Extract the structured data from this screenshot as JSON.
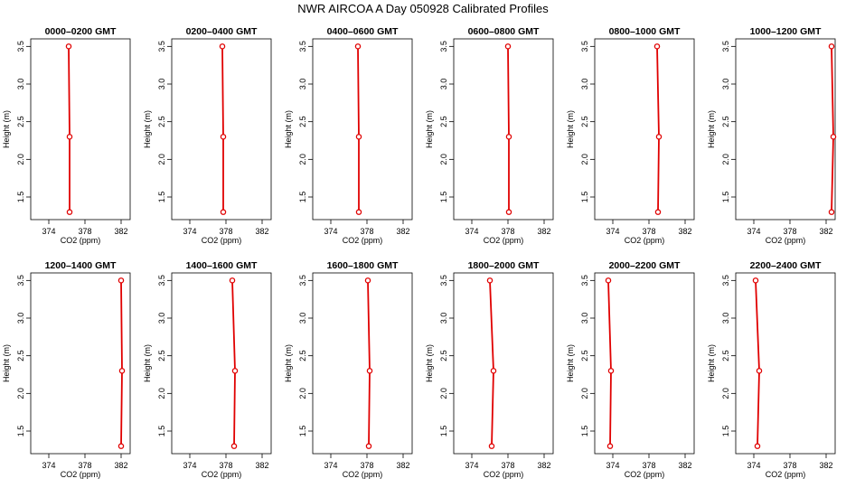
{
  "title": "NWR AIRCOA A  Day 050928  Calibrated Profiles",
  "chart_data": {
    "type": "line",
    "xlabel": "CO2 (ppm)",
    "ylabel": "Height (m)",
    "xlim": [
      372,
      383
    ],
    "ylim": [
      1.2,
      3.6
    ],
    "xticks": [
      "374",
      "378",
      "382"
    ],
    "yticks": [
      "1.5",
      "2.0",
      "2.5",
      "3.0",
      "3.5"
    ],
    "heights": [
      1.3,
      2.3,
      3.5
    ],
    "colors": {
      "line": "#e00000",
      "marker": "#e00000",
      "axis": "#000000"
    },
    "panels": [
      {
        "title": "0000–0200 GMT",
        "co2": [
          376.3,
          376.3,
          376.2
        ]
      },
      {
        "title": "0200–0400 GMT",
        "co2": [
          377.7,
          377.7,
          377.6
        ]
      },
      {
        "title": "0400–0600 GMT",
        "co2": [
          377.1,
          377.1,
          377.0
        ]
      },
      {
        "title": "0600–0800 GMT",
        "co2": [
          378.1,
          378.1,
          378.0
        ]
      },
      {
        "title": "0800–1000 GMT",
        "co2": [
          379.0,
          379.1,
          378.9
        ]
      },
      {
        "title": "1000–1200 GMT",
        "co2": [
          382.6,
          382.8,
          382.6
        ]
      },
      {
        "title": "1200–1400 GMT",
        "co2": [
          382.0,
          382.1,
          382.0
        ]
      },
      {
        "title": "1400–1600 GMT",
        "co2": [
          378.9,
          379.0,
          378.7
        ]
      },
      {
        "title": "1600–1800 GMT",
        "co2": [
          378.2,
          378.3,
          378.1
        ]
      },
      {
        "title": "1800–2000 GMT",
        "co2": [
          376.2,
          376.4,
          376.0
        ]
      },
      {
        "title": "2000–2200 GMT",
        "co2": [
          373.7,
          373.8,
          373.5
        ]
      },
      {
        "title": "2200–2400 GMT",
        "co2": [
          374.4,
          374.6,
          374.2
        ]
      }
    ]
  }
}
